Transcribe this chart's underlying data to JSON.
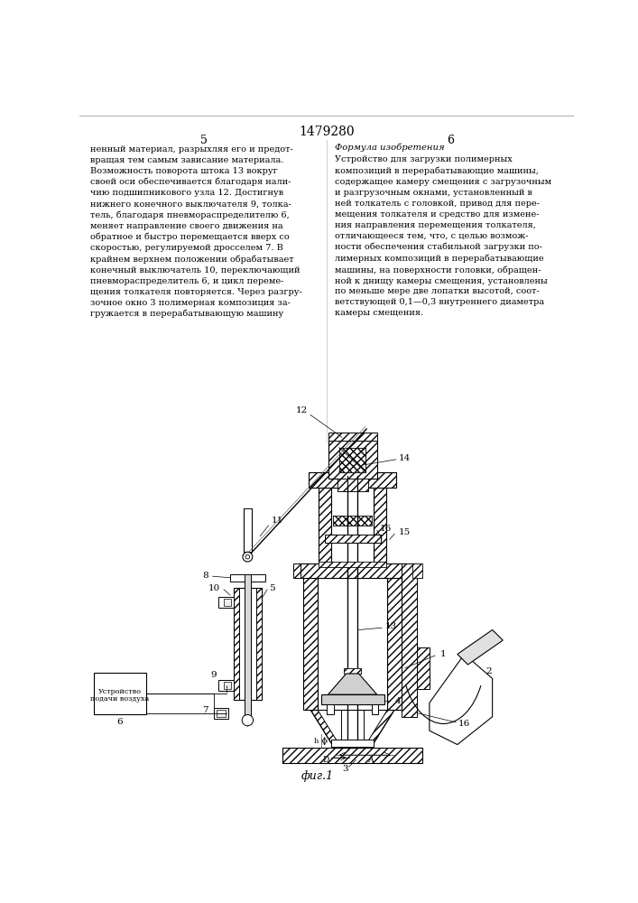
{
  "patent_number": "1479280",
  "page_left_number": "5",
  "page_right_number": "6",
  "left_text": "ненный материал, разрыхляя его и предот-\nвращая тем самым зависание материала.\nВозможность поворота штока 13 вокруг\nсвоей оси обеспечивается благодаря нали-\nчию подшипникового узла 12. Достигнув\nнижнего конечного выключателя 9, толка-\nтель, благодаря пневмораспределителю 6,\nменяет направление своего движения на\nобратное и быстро перемещается вверх со\nскоростью, регулируемой дросселем 7. В\nкрайнем верхнем положении обрабатывает\nконечный выключатель 10, переключающий\nпневмораспределитель 6, и цикл переме-\nщения толкателя повторяется. Через разгру-\nзочное окно 3 полимерная композиция за-\nгружается в перерабатывающую машину",
  "right_title": "Формула изобретения",
  "right_text": "Устройство для загрузки полимерных\nкомпозиций в перерабатывающие машины,\nсодержащее камеру смещения с загрузочным\nи разгрузочным окнами, установленный в\nней толкатель с головкой, привод для пере-\nмещения толкателя и средство для измене-\nния направления перемещения толкателя,\nотличающееся тем, что, с целью возмож-\nности обеспечения стабильной загрузки по-\nлимерных композиций в перерабатывающие\nмашины, на поверхности головки, обращен-\nной к днищу камеры смещения, установлены\nпо меньше мере две лопатки высотой, соот-\nветствующей 0,1—0,3 внутреннего диаметра\nкамеры смещения.",
  "fig_label": "фиг.1",
  "box_label_line1": "Устройство",
  "box_label_line2": "подачи воздуха",
  "bg_color": "#ffffff",
  "text_color": "#000000"
}
